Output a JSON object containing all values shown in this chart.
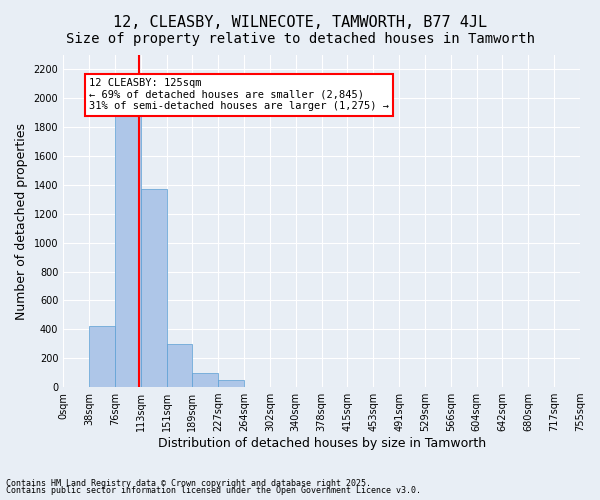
{
  "title": "12, CLEASBY, WILNECOTE, TAMWORTH, B77 4JL",
  "subtitle": "Size of property relative to detached houses in Tamworth",
  "xlabel": "Distribution of detached houses by size in Tamworth",
  "ylabel": "Number of detached properties",
  "footnote1": "Contains HM Land Registry data © Crown copyright and database right 2025.",
  "footnote2": "Contains public sector information licensed under the Open Government Licence v3.0.",
  "annotation_line1": "12 CLEASBY: 125sqm",
  "annotation_line2": "← 69% of detached houses are smaller (2,845)",
  "annotation_line3": "31% of semi-detached houses are larger (1,275) →",
  "bin_labels": [
    "0sqm",
    "38sqm",
    "76sqm",
    "113sqm",
    "151sqm",
    "189sqm",
    "227sqm",
    "264sqm",
    "302sqm",
    "340sqm",
    "378sqm",
    "415sqm",
    "453sqm",
    "491sqm",
    "529sqm",
    "566sqm",
    "604sqm",
    "642sqm",
    "680sqm",
    "717sqm",
    "755sqm"
  ],
  "bar_values": [
    0,
    420,
    1900,
    1375,
    300,
    100,
    50,
    0,
    0,
    0,
    0,
    0,
    0,
    0,
    0,
    0,
    0,
    0,
    0,
    0
  ],
  "bar_color": "#aec6e8",
  "bar_edge_color": "#5a9fd4",
  "red_line_x": 2.92,
  "ylim": [
    0,
    2300
  ],
  "yticks": [
    0,
    200,
    400,
    600,
    800,
    1000,
    1200,
    1400,
    1600,
    1800,
    2000,
    2200
  ],
  "bg_color": "#e8eef5",
  "plot_bg_color": "#e8eef5",
  "grid_color": "#ffffff",
  "title_fontsize": 11,
  "subtitle_fontsize": 10,
  "tick_fontsize": 7,
  "label_fontsize": 9
}
